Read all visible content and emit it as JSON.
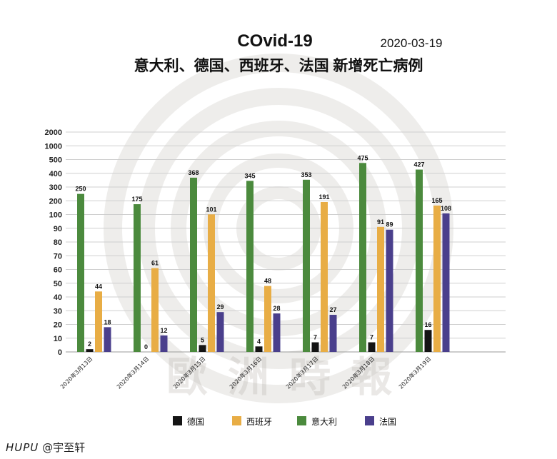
{
  "chart_data": {
    "type": "bar",
    "title": "COvid-19",
    "subtitle": "意大利、德国、西班牙、法国 新增死亡病例",
    "date": "2020-03-19",
    "categories": [
      "2020年3月13日",
      "2020年3月14日",
      "2020年3月15日",
      "2020年3月16日",
      "2020年3月17日",
      "2020年3月18日",
      "2020年3月19日"
    ],
    "series": [
      {
        "name": "德国",
        "color": "#141414",
        "values": [
          2,
          0,
          5,
          4,
          7,
          7,
          16
        ]
      },
      {
        "name": "西班牙",
        "color": "#e8ad45",
        "values": [
          44,
          61,
          101,
          48,
          191,
          91,
          165
        ]
      },
      {
        "name": "意大利",
        "color": "#4b8a3d",
        "values": [
          250,
          175,
          368,
          345,
          353,
          475,
          427
        ]
      },
      {
        "name": "法国",
        "color": "#4a3f8c",
        "values": [
          18,
          12,
          29,
          28,
          27,
          89,
          108
        ]
      }
    ],
    "bar_order": [
      "意大利",
      "德国",
      "西班牙",
      "法国"
    ],
    "y_ticks": [
      0,
      10,
      20,
      30,
      40,
      50,
      60,
      70,
      80,
      90,
      100,
      200,
      300,
      400,
      500,
      1000,
      2000
    ],
    "y_tick_labels": [
      "0",
      "10",
      "20",
      "30",
      "40",
      "50",
      "60",
      "70",
      "80",
      "90",
      "100",
      "200",
      "300",
      "400",
      "500",
      "1000",
      "2000"
    ],
    "grid": true,
    "legend_position": "bottom"
  },
  "watermark": {
    "text": "歐洲時報"
  },
  "footer": {
    "brand": "HUPU",
    "author": "@宇至轩"
  }
}
